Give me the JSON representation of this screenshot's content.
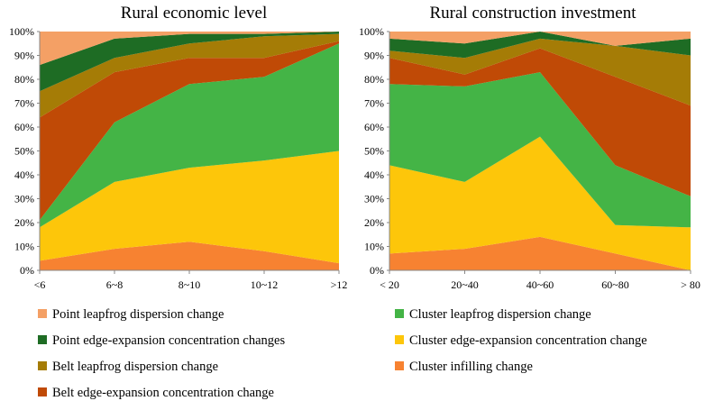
{
  "chart_data": [
    {
      "type": "area",
      "stacked": true,
      "title": "Rural economic level",
      "categories": [
        "<6",
        "6~8",
        "8~10",
        "10~12",
        ">12"
      ],
      "ylim": [
        0,
        100
      ],
      "yticks": [
        "0%",
        "10%",
        "20%",
        "30%",
        "40%",
        "50%",
        "60%",
        "70%",
        "80%",
        "90%",
        "100%"
      ],
      "series": [
        {
          "name": "Cluster infilling change",
          "values": [
            4,
            9,
            12,
            8,
            3
          ]
        },
        {
          "name": "Cluster edge-expansion concentration change",
          "values": [
            14,
            28,
            31,
            38,
            47
          ]
        },
        {
          "name": "Cluster leapfrog dispersion change",
          "values": [
            3,
            25,
            35,
            35,
            45
          ]
        },
        {
          "name": "Belt edge-expansion concentration change",
          "values": [
            43,
            21,
            11,
            8,
            1
          ]
        },
        {
          "name": "Belt leapfrog dispersion change",
          "values": [
            11,
            6,
            6,
            9,
            3
          ]
        },
        {
          "name": "Point edge-expansion concentration changes",
          "values": [
            11,
            8,
            4,
            1,
            1
          ]
        },
        {
          "name": "Point leapfrog dispersion change",
          "values": [
            14,
            3,
            1,
            1,
            0
          ]
        }
      ]
    },
    {
      "type": "area",
      "stacked": true,
      "title": "Rural construction investment",
      "categories": [
        "< 20",
        "20~40",
        "40~60",
        "60~80",
        "> 80"
      ],
      "ylim": [
        0,
        100
      ],
      "yticks": [
        "0%",
        "10%",
        "20%",
        "30%",
        "40%",
        "50%",
        "60%",
        "70%",
        "80%",
        "90%",
        "100%"
      ],
      "series": [
        {
          "name": "Cluster infilling change",
          "values": [
            7,
            9,
            14,
            7,
            0
          ]
        },
        {
          "name": "Cluster edge-expansion concentration change",
          "values": [
            37,
            28,
            42,
            12,
            18
          ]
        },
        {
          "name": "Cluster leapfrog dispersion change",
          "values": [
            34,
            40,
            27,
            25,
            13
          ]
        },
        {
          "name": "Belt edge-expansion concentration change",
          "values": [
            11,
            5,
            10,
            37,
            38
          ]
        },
        {
          "name": "Belt leapfrog dispersion change",
          "values": [
            3,
            7,
            4,
            13,
            21
          ]
        },
        {
          "name": "Point edge-expansion concentration changes",
          "values": [
            5,
            6,
            3,
            0,
            7
          ]
        },
        {
          "name": "Point leapfrog dispersion change",
          "values": [
            3,
            5,
            0,
            6,
            3
          ]
        }
      ]
    }
  ],
  "colors": {
    "Point leapfrog dispersion change": "#f4a065",
    "Point edge-expansion concentration changes": "#1e6c24",
    "Belt leapfrog dispersion change": "#a57c06",
    "Belt edge-expansion concentration change": "#c04a06",
    "Cluster leapfrog dispersion change": "#44b446",
    "Cluster edge-expansion concentration change": "#fdc60a",
    "Cluster infilling change": "#f78231"
  },
  "legend": {
    "left": [
      "Point leapfrog dispersion change",
      "Point edge-expansion concentration changes",
      "Belt leapfrog dispersion change",
      "Belt edge-expansion concentration change"
    ],
    "right": [
      "Cluster leapfrog dispersion change",
      "Cluster edge-expansion concentration change",
      "Cluster infilling change"
    ]
  }
}
